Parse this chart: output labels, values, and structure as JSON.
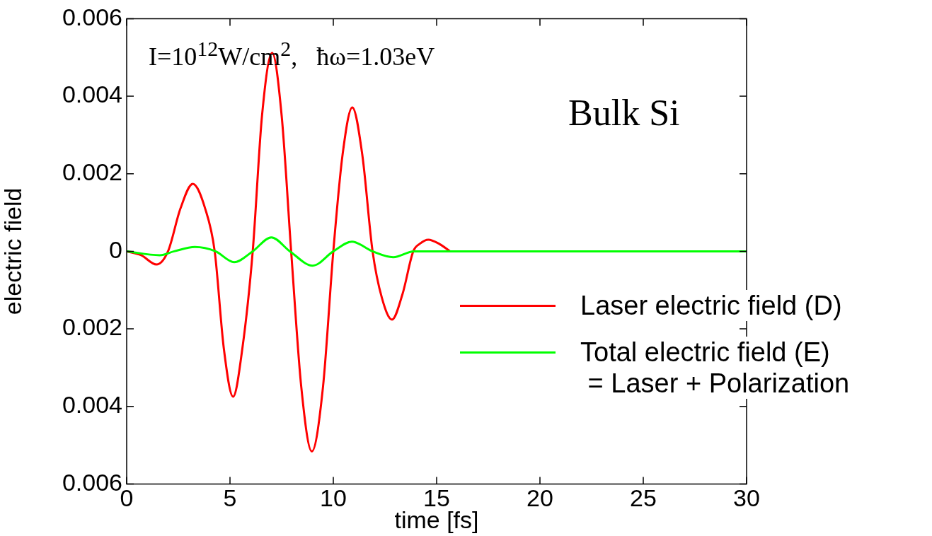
{
  "chart_data": {
    "type": "line",
    "xlabel": "time [fs]",
    "ylabel": "electric field",
    "xlim": [
      0,
      30
    ],
    "xticks": [
      0,
      5,
      10,
      15,
      20,
      25,
      30
    ],
    "ylim": [
      -0.006,
      0.006
    ],
    "yticks": [
      {
        "value": -0.006,
        "label": "0.006"
      },
      {
        "value": -0.004,
        "label": "0.004"
      },
      {
        "value": -0.002,
        "label": "0.002"
      },
      0,
      0.002,
      0.004,
      0.006
    ],
    "series": [
      {
        "name": "Laser electric field (D)",
        "color": "#ff0000",
        "x": [
          0,
          0.7,
          1.44,
          2.0,
          2.6,
          3.2,
          3.8,
          4.26,
          4.7,
          5.15,
          5.6,
          6.1,
          6.55,
          7.04,
          7.5,
          7.96,
          8.45,
          8.96,
          9.5,
          10.0,
          10.45,
          10.92,
          11.4,
          11.9,
          12.35,
          12.84,
          13.35,
          13.87,
          14.2,
          14.6,
          15.1,
          15.65
        ],
        "values": [
          0,
          -0.0001,
          -0.00034,
          0,
          0.0011,
          0.00174,
          0.0011,
          0,
          -0.0025,
          -0.00375,
          -0.0025,
          0,
          0.0035,
          0.00512,
          0.0035,
          0,
          -0.0035,
          -0.00516,
          -0.0035,
          0,
          0.0025,
          0.00371,
          0.0025,
          0,
          -0.0012,
          -0.00176,
          -0.0011,
          0,
          0.0002,
          0.0003,
          0.0002,
          0
        ]
      },
      {
        "name": "Total electric field (E)\n = Laser + Polarization",
        "color": "#00ff00",
        "x": [
          0,
          1.6,
          2.3,
          3.3,
          4.3,
          5.2,
          6.1,
          7.0,
          7.9,
          9.0,
          10.0,
          10.9,
          11.9,
          12.9,
          13.9,
          15,
          20,
          25,
          30
        ],
        "values": [
          0,
          -0.0001,
          0,
          0.00011,
          0,
          -0.00028,
          0,
          0.00036,
          0,
          -0.00037,
          0,
          0.00025,
          0,
          -0.00015,
          0,
          0,
          0,
          0,
          0
        ]
      }
    ],
    "annotations": [
      "I=10$^{12}$W/cm$^{2}$,   ħω=1.03eV",
      "Bulk Si"
    ],
    "legend": "bottom right",
    "marker": "none",
    "line_style": "solid",
    "grid": false
  }
}
